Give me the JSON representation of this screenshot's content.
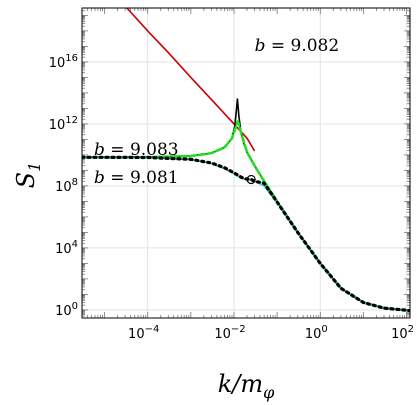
{
  "chart_data": {
    "type": "line",
    "title": "",
    "xlabel": "k/mφ",
    "ylabel": "S1",
    "xscale": "log",
    "yscale": "log",
    "xlim": [
      3e-06,
      120
    ],
    "ylim": [
      0.3,
      3e+19
    ],
    "grid": true,
    "x_ticks": [
      {
        "value": 0.0001,
        "base": "10",
        "exp": "−4"
      },
      {
        "value": 0.01,
        "base": "10",
        "exp": "−2"
      },
      {
        "value": 1,
        "base": "10",
        "exp": "0"
      },
      {
        "value": 100,
        "base": "10",
        "exp": "2"
      }
    ],
    "y_ticks": [
      {
        "value": 1,
        "base": "10",
        "exp": "0"
      },
      {
        "value": 10000,
        "base": "10",
        "exp": "4"
      },
      {
        "value": 100000000,
        "base": "10",
        "exp": "8"
      },
      {
        "value": 1000000000000,
        "base": "10",
        "exp": "12"
      },
      {
        "value": 10000000000000000,
        "base": "10",
        "exp": "16"
      }
    ],
    "annotations": [
      {
        "text_prefix": "b",
        "text_suffix": " = 9.082",
        "x": 0.03,
        "y": 5e+16
      },
      {
        "text_prefix": "b",
        "text_suffix": " = 9.083",
        "x": 3e-06,
        "y": 10000000000.0
      },
      {
        "text_prefix": "b",
        "text_suffix": " = 9.081",
        "x": 3e-06,
        "y": 150000000.0
      }
    ],
    "series": [
      {
        "color": "#cc0000",
        "style": "solid",
        "x": [
          1e-05,
          3e-05,
          0.0001,
          0.0003,
          0.001,
          0.003,
          0.01,
          0.02,
          0.03
        ],
        "y": [
          1e+21,
          4e+19,
          1e+18,
          4e+16,
          1000000000000000.0,
          37000000000000.0,
          1000000000000.0,
          120000000000.0,
          18000000000.0
        ]
      },
      {
        "color": "#000000",
        "style": "solid",
        "x": [
          3e-06,
          1e-05,
          0.0001,
          0.001,
          0.003,
          0.006,
          0.009,
          0.0105,
          0.0115,
          0.012,
          0.013,
          0.0145,
          0.017,
          0.02,
          0.025,
          0.03,
          0.05,
          0.1,
          0.3,
          1,
          3,
          10,
          30,
          100,
          120
        ],
        "y": [
          7000000000.0,
          7000000000.0,
          7200000000.0,
          8500000000.0,
          13000000000.0,
          30000000000.0,
          120000000000.0,
          800000000000.0,
          11000000000000.0,
          40000000000000.0,
          3000000000000.0,
          300000000000.0,
          50000000000.0,
          15000000000.0,
          5000000000.0,
          2000000000.0,
          200000000.0,
          10000000.0,
          100000.0,
          1000,
          25,
          3,
          1.3,
          0.95,
          0.9
        ]
      },
      {
        "color": "#22dd22",
        "style": "dashed",
        "x": [
          3e-06,
          1e-05,
          0.0001,
          0.001,
          0.003,
          0.006,
          0.009,
          0.011,
          0.012,
          0.0125,
          0.013,
          0.015,
          0.018,
          0.02,
          0.025,
          0.03,
          0.05,
          0.1,
          0.3,
          1,
          3,
          10,
          30,
          100,
          120
        ],
        "y": [
          7000000000.0,
          7000000000.0,
          7200000000.0,
          8500000000.0,
          13000000000.0,
          30000000000.0,
          120000000000.0,
          600000000000.0,
          1400000000000.0,
          1300000000000.0,
          900000000000.0,
          200000000000.0,
          40000000000.0,
          15000000000.0,
          5000000000.0,
          2000000000.0,
          200000000.0,
          10000000.0,
          100000.0,
          1000,
          25,
          3,
          1.3,
          0.95,
          0.9
        ]
      },
      {
        "color": "#22cccc",
        "style": "solid",
        "x": [
          3e-06,
          1e-05,
          0.0001,
          0.001,
          0.003,
          0.006,
          0.01,
          0.015,
          0.02,
          0.025,
          0.03,
          0.05,
          0.1,
          0.3,
          1,
          3,
          10,
          30,
          100,
          120
        ],
        "y": [
          7000000000.0,
          7000000000.0,
          6700000000.0,
          5000000000.0,
          2800000000.0,
          1300000000.0,
          600000000.0,
          300000000.0,
          260000000.0,
          260000000.0,
          200000000.0,
          100000000.0,
          8000000.0,
          90000.0,
          900,
          23,
          3,
          1.3,
          0.95,
          0.9
        ]
      },
      {
        "color": "#000000",
        "style": "dotted",
        "x": [
          3e-06,
          1e-05,
          0.0001,
          0.001,
          0.003,
          0.006,
          0.01,
          0.015,
          0.02,
          0.025,
          0.03,
          0.05,
          0.1,
          0.3,
          1,
          3,
          10,
          30,
          100,
          120
        ],
        "y": [
          7000000000.0,
          7000000000.0,
          6800000000.0,
          5200000000.0,
          3000000000.0,
          1500000000.0,
          700000000.0,
          350000000.0,
          270000000.0,
          260000000.0,
          200000000.0,
          150000000.0,
          9000000.0,
          100000.0,
          1000,
          25,
          3,
          1.3,
          0.95,
          0.9
        ]
      }
    ]
  }
}
